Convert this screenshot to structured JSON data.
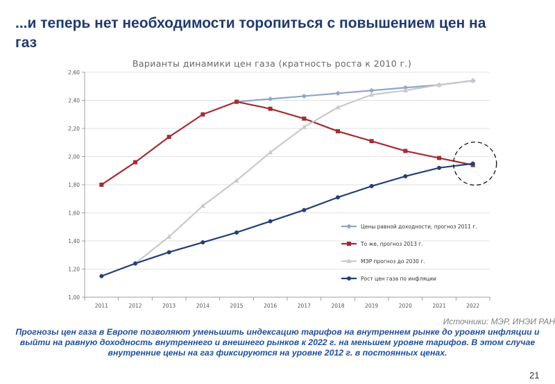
{
  "slide": {
    "title": "...и теперь нет необходимости торопиться с повышением цен на газ",
    "sources": "Источники: МЭР, ИНЭИ РАН",
    "caption": "Прогнозы цен газа в Европе позволяют уменьшить индексацию тарифов на внутреннем рынке до уровня инфляции и выйти на равную доходность внутреннего и внешнего рынков к 2022 г. на меньшем уровне тарифов. В этом случае внутренние цены на газ фиксируются на уровне 2012 г. в постоянных ценах.",
    "page_number": "21"
  },
  "chart_data": {
    "type": "line",
    "title": "Варианты динамики цен газа (кратность роста к 2010 г.)",
    "categories": [
      "2011",
      "2012",
      "2013",
      "2014",
      "2015",
      "2016",
      "2017",
      "2018",
      "2019",
      "2020",
      "2021",
      "2022"
    ],
    "ylim": [
      1.0,
      2.6
    ],
    "yticks": [
      "1,00",
      "1,20",
      "1,40",
      "1,60",
      "1,80",
      "2,00",
      "2,20",
      "2,40",
      "2,60"
    ],
    "grid": "horizontal",
    "legend_position": "bottom-right",
    "series": [
      {
        "name": "Цены равной доходности, прогноз 2011 г.",
        "color": "#8ea6c8",
        "marker": "diamond",
        "values": [
          null,
          null,
          null,
          null,
          2.39,
          2.41,
          2.43,
          2.45,
          2.47,
          2.49,
          2.51,
          2.54
        ]
      },
      {
        "name": "То же, прогноз 2013 г.",
        "color": "#a52a34",
        "marker": "square",
        "values": [
          1.8,
          1.96,
          2.14,
          2.3,
          2.39,
          2.34,
          2.27,
          2.18,
          2.11,
          2.04,
          1.99,
          1.94
        ]
      },
      {
        "name": "МЭР прогноз до 2030 г.",
        "color": "#c9c9c9",
        "marker": "triangle",
        "values": [
          null,
          1.24,
          1.43,
          1.65,
          1.83,
          2.03,
          2.21,
          2.35,
          2.44,
          2.47,
          2.51,
          2.54
        ]
      },
      {
        "name": "Рост цен газа по инфляции",
        "color": "#243f75",
        "marker": "circle",
        "values": [
          1.15,
          1.24,
          1.32,
          1.39,
          1.46,
          1.54,
          1.62,
          1.71,
          1.79,
          1.86,
          1.92,
          1.95
        ]
      }
    ],
    "annotations": [
      {
        "type": "dashed-circle",
        "category": "2022",
        "value": 1.95
      }
    ]
  }
}
